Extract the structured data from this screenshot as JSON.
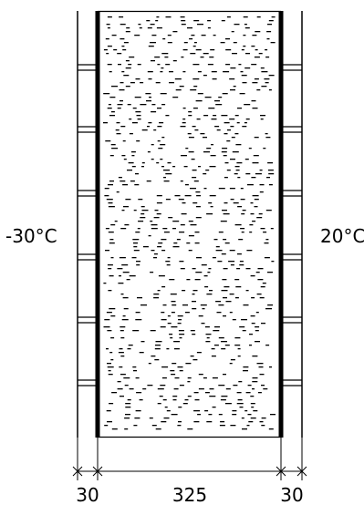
{
  "temperatures": {
    "outside": "-30°C",
    "inside": "20°C"
  },
  "dimensions": {
    "outer_layer": "30",
    "core_layer": "325",
    "inner_layer": "30"
  },
  "colors": {
    "line": "#000000",
    "background": "#ffffff"
  }
}
